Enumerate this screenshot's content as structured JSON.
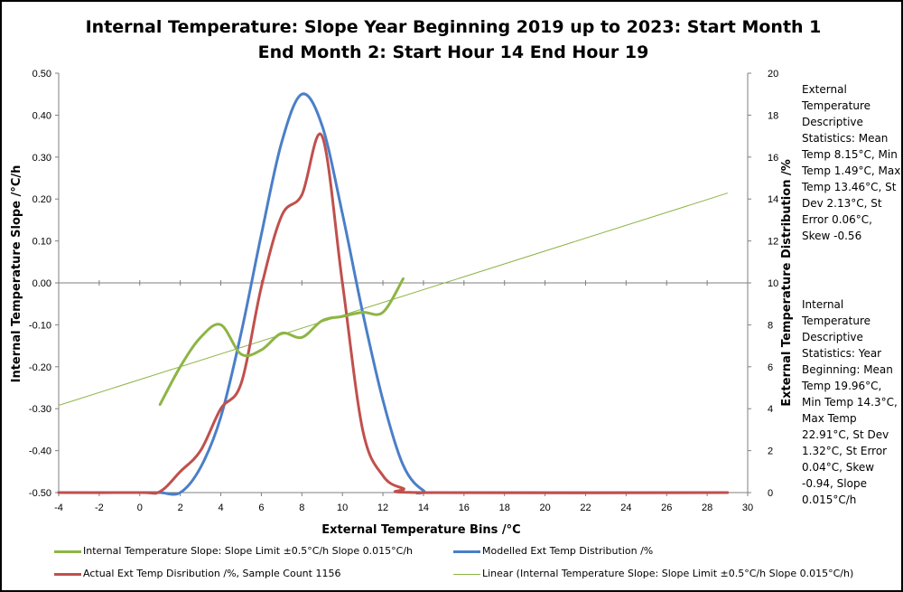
{
  "chart_data": {
    "type": "line",
    "title_line1": "Internal Temperature: Slope Year Beginning 2019 up to 2023: Start Month 1",
    "title_line2": "End Month 2: Start Hour 14 End Hour 19",
    "xlabel": "External Temperature Bins /°C",
    "ylabel_left": "Internal Temperature Slope /°C/h",
    "ylabel_right": "External Temperature Distribution /%",
    "x_ticks": [
      "-4",
      "-2",
      "0",
      "2",
      "4",
      "6",
      "8",
      "10",
      "12",
      "14",
      "16",
      "18",
      "20",
      "22",
      "24",
      "26",
      "28",
      "30"
    ],
    "y_left_ticks": [
      "0.50",
      "0.40",
      "0.30",
      "0.20",
      "0.10",
      "0.00",
      "-0.10",
      "-0.20",
      "-0.30",
      "-0.40",
      "-0.50"
    ],
    "y_right_ticks": [
      "20",
      "18",
      "16",
      "14",
      "12",
      "10",
      "8",
      "6",
      "4",
      "2",
      "0"
    ],
    "xlim": [
      -4,
      30
    ],
    "ylim_left": [
      -0.5,
      0.5
    ],
    "ylim_right": [
      0,
      20
    ],
    "grid": false,
    "legend_position": "bottom",
    "series": [
      {
        "name": "Internal Temperature Slope: Slope Limit ±0.5°C/h Slope 0.015°C/h",
        "axis": "left",
        "color": "#8DB545",
        "width": 3,
        "x": [
          1,
          2,
          3,
          4,
          5,
          6,
          7,
          8,
          9,
          10,
          11,
          12,
          13
        ],
        "y": [
          -0.29,
          -0.2,
          -0.13,
          -0.1,
          -0.17,
          -0.16,
          -0.12,
          -0.13,
          -0.09,
          -0.08,
          -0.07,
          -0.07,
          0.01
        ]
      },
      {
        "name": "Modelled Ext Temp Distribution /%",
        "axis": "right",
        "color": "#4A7FC8",
        "width": 3,
        "x": [
          -4,
          0,
          1,
          2,
          3,
          4,
          5,
          6,
          7,
          8,
          9,
          10,
          11,
          12,
          13,
          14,
          15,
          29
        ],
        "y": [
          0,
          0,
          0,
          0,
          1.2,
          3.6,
          7.6,
          12.3,
          16.7,
          19.0,
          17.5,
          13.3,
          8.6,
          4.4,
          1.3,
          0.1,
          0,
          0
        ]
      },
      {
        "name": "Actual Ext Temp Disribution /%, Sample Count 1156",
        "axis": "right",
        "color": "#C0504D",
        "width": 3,
        "x": [
          -4,
          0,
          1,
          2,
          3,
          4,
          5,
          6,
          7,
          8,
          9,
          10,
          11,
          12,
          13,
          14,
          29
        ],
        "y": [
          0,
          0,
          0.05,
          1.0,
          2.0,
          4.0,
          5.2,
          9.8,
          13.2,
          14.2,
          17.0,
          10.0,
          3.0,
          0.8,
          0.2,
          0,
          0
        ]
      },
      {
        "name": "Linear (Internal Temperature Slope: Slope Limit ±0.5°C/h Slope 0.015°C/h)",
        "axis": "left",
        "color": "#8DB545",
        "width": 1,
        "trendline": true,
        "x": [
          -4,
          29
        ],
        "y": [
          -0.292,
          0.214
        ]
      }
    ]
  },
  "notes": {
    "external": "External Temperature Descriptive Statistics: Mean Temp 8.15°C, Min Temp 1.49°C, Max Temp 13.46°C, St Dev 2.13°C, St Error 0.06°C, Skew -0.56",
    "internal": "Internal Temperature Descriptive Statistics: Year Beginning: Mean Temp 19.96°C, Min Temp 14.3°C, Max Temp 22.91°C, St Dev 1.32°C, St Error 0.04°C, Skew -0.94, Slope 0.015°C/h"
  },
  "legend": {
    "item1": "Internal Temperature Slope: Slope Limit ±0.5°C/h Slope 0.015°C/h",
    "item2": "Modelled Ext Temp Distribution /%",
    "item3": "Actual Ext Temp Disribution /%, Sample Count 1156",
    "item4": "Linear (Internal Temperature Slope: Slope Limit ±0.5°C/h Slope 0.015°C/h)"
  }
}
